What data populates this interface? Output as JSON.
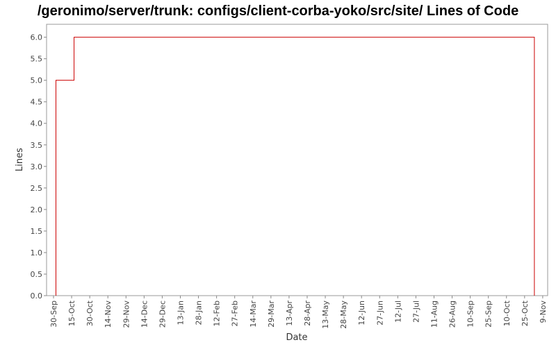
{
  "chart_data": {
    "type": "line",
    "title": "/geronimo/server/trunk: configs/client-corba-yoko/src/site/ Lines of Code",
    "xlabel": "Date",
    "ylabel": "Lines",
    "ylim": [
      0,
      6.3
    ],
    "y_ticks": [
      "0.0",
      "0.5",
      "1.0",
      "1.5",
      "2.0",
      "2.5",
      "3.0",
      "3.5",
      "4.0",
      "4.5",
      "5.0",
      "5.5",
      "6.0"
    ],
    "x_ticks": [
      "30-Sep",
      "15-Oct",
      "30-Oct",
      "14-Nov",
      "29-Nov",
      "14-Dec",
      "29-Dec",
      "13-Jan",
      "28-Jan",
      "12-Feb",
      "27-Feb",
      "14-Mar",
      "29-Mar",
      "13-Apr",
      "28-Apr",
      "13-May",
      "28-May",
      "12-Jun",
      "27-Jun",
      "12-Jul",
      "27-Jul",
      "11-Aug",
      "26-Aug",
      "10-Sep",
      "25-Sep",
      "10-Oct",
      "25-Oct",
      "9-Nov"
    ],
    "series_color": "#cc0000",
    "grid": false,
    "series": [
      {
        "step": "post",
        "x": [
          "2-Oct",
          "17-Oct",
          "30-Oct"
        ],
        "values": [
          5,
          6,
          6
        ]
      }
    ]
  }
}
